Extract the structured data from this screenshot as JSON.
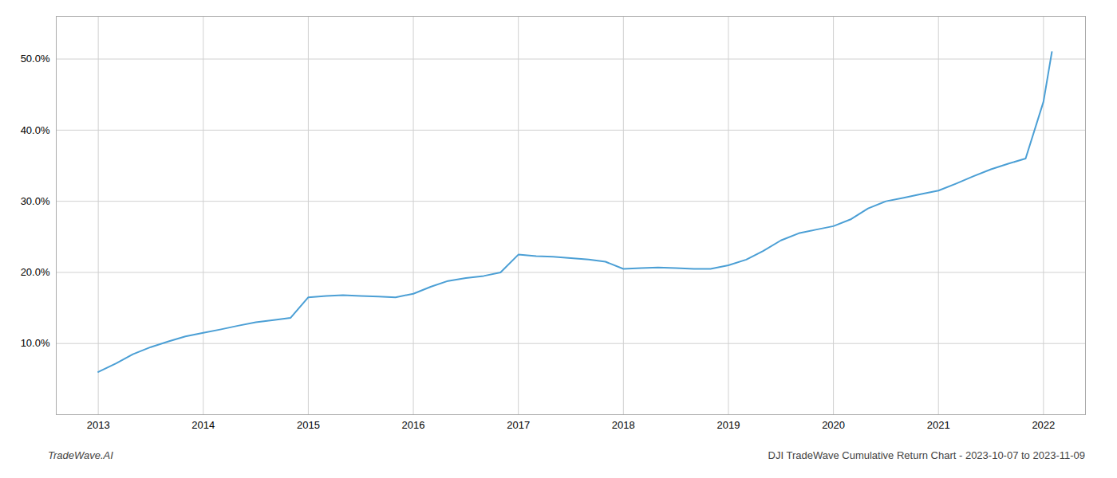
{
  "chart_data": {
    "type": "line",
    "x": [
      2013.0,
      2013.17,
      2013.33,
      2013.5,
      2013.67,
      2013.83,
      2014.0,
      2014.17,
      2014.33,
      2014.5,
      2014.67,
      2014.83,
      2015.0,
      2015.17,
      2015.33,
      2015.5,
      2015.67,
      2015.83,
      2016.0,
      2016.17,
      2016.33,
      2016.5,
      2016.67,
      2016.83,
      2017.0,
      2017.17,
      2017.33,
      2017.5,
      2017.67,
      2017.83,
      2018.0,
      2018.17,
      2018.33,
      2018.5,
      2018.67,
      2018.83,
      2019.0,
      2019.17,
      2019.33,
      2019.5,
      2019.67,
      2019.83,
      2020.0,
      2020.17,
      2020.33,
      2020.5,
      2020.67,
      2020.83,
      2021.0,
      2021.17,
      2021.33,
      2021.5,
      2021.67,
      2021.83,
      2022.0,
      2022.08
    ],
    "values": [
      6.0,
      7.2,
      8.5,
      9.5,
      10.3,
      11.0,
      11.5,
      12.0,
      12.5,
      13.0,
      13.3,
      13.6,
      16.5,
      16.7,
      16.8,
      16.7,
      16.6,
      16.5,
      17.0,
      18.0,
      18.8,
      19.2,
      19.5,
      20.0,
      22.5,
      22.3,
      22.2,
      22.0,
      21.8,
      21.5,
      20.5,
      20.6,
      20.7,
      20.6,
      20.5,
      20.5,
      21.0,
      21.8,
      23.0,
      24.5,
      25.5,
      26.0,
      26.5,
      27.5,
      29.0,
      30.0,
      30.5,
      31.0,
      31.5,
      32.5,
      33.5,
      34.5,
      35.3,
      36.0,
      44.0,
      51.0
    ],
    "color": "#4b9fd5",
    "xlim": [
      2012.6,
      2022.4
    ],
    "xticks": [
      2013,
      2014,
      2015,
      2016,
      2017,
      2018,
      2019,
      2020,
      2021,
      2022
    ],
    "ylim": [
      0,
      56
    ],
    "yticks": [
      {
        "value": 10.0,
        "label": "10.0%"
      },
      {
        "value": 20.0,
        "label": "20.0%"
      },
      {
        "value": 30.0,
        "label": "30.0%"
      },
      {
        "value": 40.0,
        "label": "40.0%"
      },
      {
        "value": 50.0,
        "label": "50.0%"
      }
    ],
    "grid": true,
    "annotations": [
      "TradeWave.AI",
      "DJI TradeWave Cumulative Return Chart - 2023-10-07 to 2023-11-09"
    ]
  }
}
